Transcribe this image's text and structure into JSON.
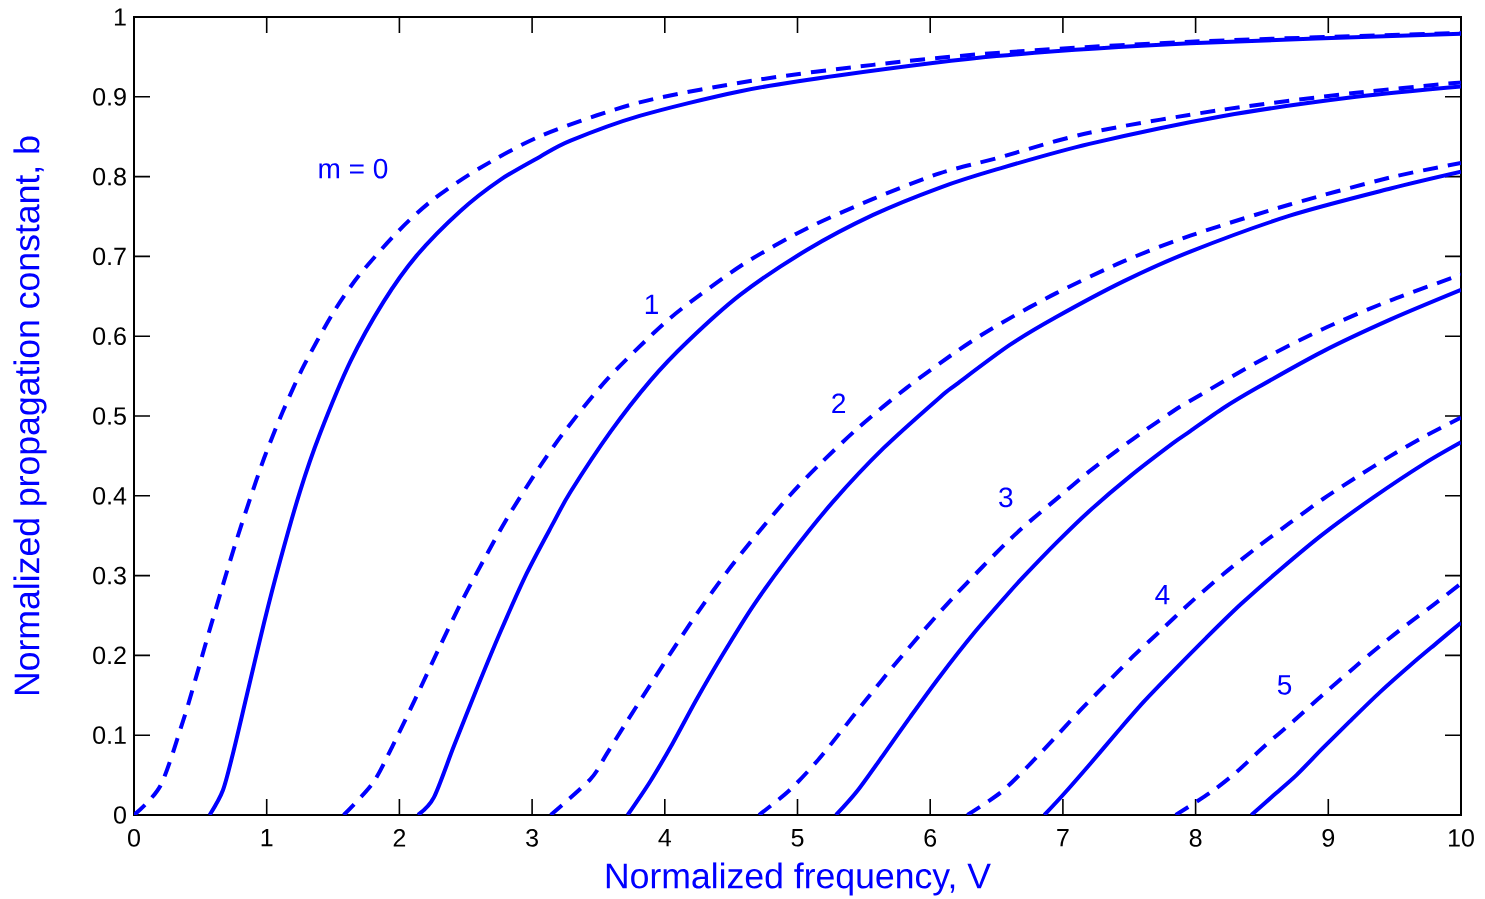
{
  "chart_data": {
    "type": "line",
    "xlabel": "Normalized frequency, V",
    "ylabel": "Normalized propagation constant, b",
    "xlim": [
      0,
      10
    ],
    "ylim": [
      0,
      1
    ],
    "xticks": [
      0,
      1,
      2,
      3,
      4,
      5,
      6,
      7,
      8,
      9,
      10
    ],
    "yticks": [
      0,
      0.1,
      0.2,
      0.3,
      0.4,
      0.5,
      0.6,
      0.7,
      0.8,
      0.9,
      1
    ],
    "marker": "none",
    "series": [
      {
        "color": "#0000ff",
        "line_style": "dashed",
        "x": [
          0,
          0.2,
          0.37,
          0.47,
          0.57,
          0.7,
          0.77,
          0.85,
          0.98,
          1.12,
          1.28,
          1.5,
          1.7,
          2.0,
          2.26,
          2.61,
          3.08,
          3.81,
          4.69,
          5.57,
          6.5,
          7.96,
          10
        ],
        "values": [
          0,
          0.037,
          0.118,
          0.174,
          0.232,
          0.305,
          0.343,
          0.384,
          0.447,
          0.505,
          0.563,
          0.629,
          0.677,
          0.733,
          0.772,
          0.811,
          0.852,
          0.893,
          0.921,
          0.94,
          0.955,
          0.969,
          0.98
        ]
      },
      {
        "color": "#0000ff",
        "line_style": "solid",
        "x": [
          0.57,
          0.67,
          0.75,
          0.85,
          0.98,
          1.1,
          1.25,
          1.4,
          1.63,
          1.88,
          2.13,
          2.46,
          2.76,
          3.06,
          3.29,
          3.81,
          4.57,
          5.32,
          6.5,
          7.96,
          10
        ],
        "values": [
          0,
          0.031,
          0.08,
          0.15,
          0.241,
          0.318,
          0.405,
          0.477,
          0.568,
          0.643,
          0.701,
          0.757,
          0.796,
          0.825,
          0.845,
          0.876,
          0.907,
          0.927,
          0.951,
          0.967,
          0.979
        ]
      },
      {
        "color": "#0000ff",
        "line_style": "dashed",
        "x": [
          1.58,
          1.8,
          1.95,
          2.13,
          2.31,
          2.48,
          2.66,
          2.83,
          3.06,
          3.26,
          3.56,
          3.91,
          4.14,
          4.59,
          5.07,
          5.57,
          6.07,
          6.5,
          7.2,
          8.21,
          9.21,
          10
        ],
        "values": [
          0,
          0.04,
          0.087,
          0.149,
          0.213,
          0.271,
          0.327,
          0.377,
          0.437,
          0.484,
          0.545,
          0.603,
          0.636,
          0.69,
          0.735,
          0.772,
          0.804,
          0.823,
          0.855,
          0.884,
          0.905,
          0.918
        ]
      },
      {
        "color": "#0000ff",
        "line_style": "solid",
        "x": [
          2.14,
          2.26,
          2.41,
          2.58,
          2.76,
          2.96,
          3.16,
          3.29,
          3.59,
          3.89,
          4.17,
          4.57,
          5.07,
          5.57,
          6.07,
          6.5,
          7.2,
          8.21,
          9.21,
          10
        ],
        "values": [
          0,
          0.022,
          0.086,
          0.157,
          0.229,
          0.303,
          0.366,
          0.405,
          0.48,
          0.544,
          0.593,
          0.652,
          0.708,
          0.752,
          0.786,
          0.809,
          0.841,
          0.876,
          0.9,
          0.913
        ]
      },
      {
        "color": "#0000ff",
        "line_style": "dashed",
        "x": [
          3.14,
          3.44,
          3.56,
          3.71,
          3.89,
          4.06,
          4.27,
          4.47,
          4.67,
          4.94,
          5.17,
          5.47,
          5.82,
          6.2,
          6.5,
          6.95,
          7.46,
          7.96,
          8.71,
          9.47,
          10
        ],
        "values": [
          0,
          0.045,
          0.076,
          0.116,
          0.163,
          0.207,
          0.259,
          0.305,
          0.347,
          0.4,
          0.44,
          0.487,
          0.535,
          0.581,
          0.613,
          0.654,
          0.694,
          0.726,
          0.765,
          0.799,
          0.817
        ]
      },
      {
        "color": "#0000ff",
        "line_style": "solid",
        "x": [
          3.72,
          3.89,
          4.06,
          4.24,
          4.44,
          4.67,
          4.94,
          5.27,
          5.65,
          6.07,
          6.2,
          6.6,
          6.95,
          7.46,
          7.96,
          8.71,
          9.47,
          10
        ],
        "values": [
          0,
          0.042,
          0.09,
          0.145,
          0.202,
          0.263,
          0.325,
          0.393,
          0.46,
          0.523,
          0.54,
          0.589,
          0.624,
          0.669,
          0.706,
          0.751,
          0.785,
          0.806
        ]
      },
      {
        "color": "#0000ff",
        "line_style": "dashed",
        "x": [
          4.71,
          4.94,
          5.15,
          5.32,
          5.52,
          5.72,
          5.95,
          6.17,
          6.4,
          6.58,
          6.73,
          6.98,
          7.18,
          7.41,
          7.62,
          7.83,
          7.96,
          8.46,
          8.96,
          9.47,
          10
        ],
        "values": [
          0,
          0.031,
          0.068,
          0.103,
          0.145,
          0.186,
          0.231,
          0.272,
          0.312,
          0.342,
          0.365,
          0.4,
          0.428,
          0.457,
          0.482,
          0.506,
          0.519,
          0.567,
          0.609,
          0.645,
          0.677
        ]
      },
      {
        "color": "#0000ff",
        "line_style": "solid",
        "x": [
          5.29,
          5.45,
          5.65,
          5.85,
          6.07,
          6.33,
          6.58,
          6.7,
          6.95,
          7.2,
          7.51,
          7.83,
          7.96,
          8.21,
          8.46,
          8.96,
          9.47,
          10
        ],
        "values": [
          0,
          0.03,
          0.076,
          0.123,
          0.173,
          0.228,
          0.276,
          0.298,
          0.341,
          0.381,
          0.425,
          0.466,
          0.481,
          0.51,
          0.535,
          0.581,
          0.621,
          0.658
        ]
      },
      {
        "color": "#0000ff",
        "line_style": "dashed",
        "x": [
          6.28,
          6.53,
          6.73,
          6.93,
          7.13,
          7.33,
          7.53,
          7.73,
          7.96,
          8.21,
          8.46,
          8.71,
          8.96,
          9.21,
          9.47,
          9.72,
          10
        ],
        "values": [
          0,
          0.028,
          0.06,
          0.095,
          0.131,
          0.165,
          0.199,
          0.23,
          0.266,
          0.302,
          0.335,
          0.366,
          0.396,
          0.423,
          0.45,
          0.474,
          0.498
        ]
      },
      {
        "color": "#0000ff",
        "line_style": "solid",
        "x": [
          6.86,
          7.0,
          7.2,
          7.41,
          7.61,
          7.83,
          8.08,
          8.34,
          8.64,
          8.96,
          9.34,
          9.72,
          10
        ],
        "values": [
          0,
          0.025,
          0.063,
          0.104,
          0.142,
          0.18,
          0.222,
          0.264,
          0.308,
          0.352,
          0.398,
          0.44,
          0.467
        ]
      },
      {
        "color": "#0000ff",
        "line_style": "dashed",
        "x": [
          7.85,
          8.11,
          8.31,
          8.51,
          8.74,
          8.96,
          9.19,
          9.39,
          9.62,
          9.79,
          10
        ],
        "values": [
          0,
          0.028,
          0.054,
          0.085,
          0.118,
          0.151,
          0.184,
          0.212,
          0.242,
          0.263,
          0.29
        ]
      },
      {
        "color": "#0000ff",
        "line_style": "solid",
        "x": [
          8.42,
          8.59,
          8.76,
          8.96,
          9.16,
          9.39,
          9.62,
          9.82,
          10
        ],
        "values": [
          0,
          0.025,
          0.05,
          0.084,
          0.117,
          0.154,
          0.188,
          0.216,
          0.241
        ]
      }
    ],
    "annotations": [
      "m = 0",
      "1",
      "2",
      "3",
      "4",
      "5"
    ]
  }
}
